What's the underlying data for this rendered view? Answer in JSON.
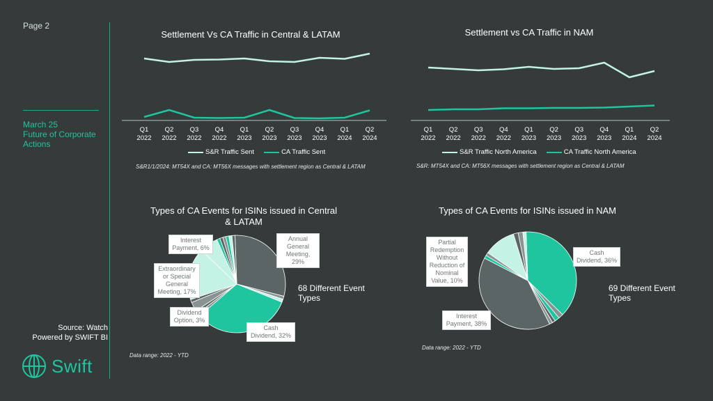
{
  "sidebar": {
    "page": "Page 2",
    "date": "March 25",
    "subtitle": "Future of Corporate Actions",
    "source_line1": "Source: Watch",
    "source_line2": "Powered by SWIFT BI",
    "logo_text": "Swift"
  },
  "colors": {
    "background": "#353b3b",
    "accent": "#1fc59e",
    "sr_line": "#c4f2e4",
    "pie_grey": "#5c6565",
    "pie_teal": "#1fc59e",
    "pie_light": "#c4f2e4"
  },
  "chart_data": [
    {
      "type": "line",
      "title": "Settlement Vs CA Traffic in Central & LATAM",
      "categories": [
        "Q1 2022",
        "Q2 2022",
        "Q3 2022",
        "Q4 2022",
        "Q1 2023",
        "Q2 2023",
        "Q3 2023",
        "Q4 2023",
        "Q1 2024",
        "Q2 2024"
      ],
      "category_lines": [
        [
          "Q1",
          "2022"
        ],
        [
          "Q2",
          "2022"
        ],
        [
          "Q3",
          "2022"
        ],
        [
          "Q4",
          "2022"
        ],
        [
          "Q1",
          "2023"
        ],
        [
          "Q2",
          "2023"
        ],
        [
          "Q3",
          "2023"
        ],
        [
          "Q4",
          "2023"
        ],
        [
          "Q1",
          "2024"
        ],
        [
          "Q2",
          "2024"
        ]
      ],
      "series": [
        {
          "name": "S&R Traffic Sent",
          "values": [
            91,
            86,
            89,
            89.5,
            91,
            87,
            86,
            92,
            90.5,
            98
          ]
        },
        {
          "name": "CA Traffic Sent",
          "values": [
            7,
            17,
            6,
            5.5,
            6,
            17,
            5.5,
            5,
            6,
            16.5
          ]
        }
      ],
      "ylim": [
        0,
        110
      ],
      "grid": false,
      "legend": "bottom",
      "footnote": "S&R1/1/2024: MT54X and CA: MT56X messages with settlement region as Central & LATAM"
    },
    {
      "type": "line",
      "title": "Settlement vs CA Traffic in NAM",
      "categories": [
        "Q1 2022",
        "Q2 2022",
        "Q3 2022",
        "Q4 2022",
        "Q1 2023",
        "Q2 2023",
        "Q3 2023",
        "Q4 2023",
        "Q1 2024",
        "Q2 2024"
      ],
      "category_lines": [
        [
          "Q1",
          "2022"
        ],
        [
          "Q2",
          "2022"
        ],
        [
          "Q3",
          "2022"
        ],
        [
          "Q4",
          "2022"
        ],
        [
          "Q1",
          "2023"
        ],
        [
          "Q2",
          "2023"
        ],
        [
          "Q3",
          "2023"
        ],
        [
          "Q4",
          "2023"
        ],
        [
          "Q1",
          "2024"
        ],
        [
          "Q2",
          "2024"
        ]
      ],
      "series": [
        {
          "name": "S&R Traffic North America",
          "values": [
            78,
            76,
            74,
            75.5,
            79,
            76,
            77,
            85,
            64,
            73
          ]
        },
        {
          "name": "CA Traffic North America",
          "values": [
            17,
            18,
            18,
            19.5,
            19.5,
            20,
            20,
            20.5,
            22,
            23.5
          ]
        }
      ],
      "ylim": [
        0,
        110
      ],
      "grid": false,
      "legend": "bottom",
      "footnote": "S&R: MT54X and CA: MT56X messages with settlement region as Central & LATAM"
    },
    {
      "type": "pie",
      "title": "Types of CA Events for ISINs issued in Central & LATAM",
      "title_lines": [
        "Types of CA Events for ISINs issued in Central",
        "& LATAM"
      ],
      "slices": [
        {
          "label": "Annual General Meeting",
          "value": 29,
          "color": "#5c6565"
        },
        {
          "label": "",
          "value": 1,
          "color": "#8a9393"
        },
        {
          "label": "",
          "value": 1,
          "color": "#c4f2e4"
        },
        {
          "label": "Cash Dividend",
          "value": 32,
          "color": "#1fc59e"
        },
        {
          "label": "",
          "value": 1,
          "color": "#8a9393"
        },
        {
          "label": "",
          "value": 1,
          "color": "#5c6565"
        },
        {
          "label": "Dividend Option",
          "value": 3,
          "color": "#8a9393"
        },
        {
          "label": "",
          "value": 1,
          "color": "#5c6565"
        },
        {
          "label": "Extraordinary or Special General Meeting",
          "value": 17,
          "color": "#c4f2e4"
        },
        {
          "label": "Interest Payment",
          "value": 6,
          "color": "#c4f2e4"
        },
        {
          "label": "",
          "value": 1,
          "color": "#1fc59e"
        },
        {
          "label": "",
          "value": 1,
          "color": "#5c6565"
        },
        {
          "label": "",
          "value": 1,
          "color": "#8a9393"
        },
        {
          "label": "",
          "value": 1,
          "color": "#1fc59e"
        },
        {
          "label": "",
          "value": 1,
          "color": "#c4f2e4"
        },
        {
          "label": "",
          "value": 1,
          "color": "#5c6565"
        }
      ],
      "callouts": {
        "agm": [
          "Annual",
          "General",
          "Meeting, 29%"
        ],
        "cash": [
          "Cash",
          "Dividend, 32%"
        ],
        "div_opt": [
          "Dividend",
          "Option, 3%"
        ],
        "extra": [
          "Extraordinary",
          "or Special",
          "General",
          "Meeting, 17%"
        ],
        "interest": [
          "Interest",
          "Payment, 6%"
        ]
      },
      "event_count": "68 Different Event Types",
      "footnote": "Data range: 2022 - YTD"
    },
    {
      "type": "pie",
      "title": "Types of CA Events for ISINs issued in NAM",
      "slices": [
        {
          "label": "Cash Dividend",
          "value": 36,
          "color": "#1fc59e"
        },
        {
          "label": "",
          "value": 1.5,
          "color": "#8a9393"
        },
        {
          "label": "",
          "value": 1.5,
          "color": "#1fc59e"
        },
        {
          "label": "",
          "value": 1,
          "color": "#5c6565"
        },
        {
          "label": "",
          "value": 1,
          "color": "#8a9393"
        },
        {
          "label": "Interest Payment",
          "value": 38,
          "color": "#5c6565"
        },
        {
          "label": "",
          "value": 1,
          "color": "#1fc59e"
        },
        {
          "label": "",
          "value": 1,
          "color": "#8a9393"
        },
        {
          "label": "Partial Redemption Without Reduction of Nominal Value",
          "value": 10,
          "color": "#c4f2e4"
        },
        {
          "label": "",
          "value": 1.5,
          "color": "#5c6565"
        },
        {
          "label": "",
          "value": 1.5,
          "color": "#8a9393"
        },
        {
          "label": "",
          "value": 1,
          "color": "#c4f2e4"
        }
      ],
      "callouts": {
        "cash": [
          "Cash",
          "Dividend, 36%"
        ],
        "interest": [
          "Interest",
          "Payment, 38%"
        ],
        "partial": [
          "Partial",
          "Redemption",
          "Without",
          "Reduction of",
          "Nominal",
          "Value, 10%"
        ]
      },
      "event_count": "69 Different Event Types",
      "footnote": "Data range: 2022 - YTD"
    }
  ]
}
